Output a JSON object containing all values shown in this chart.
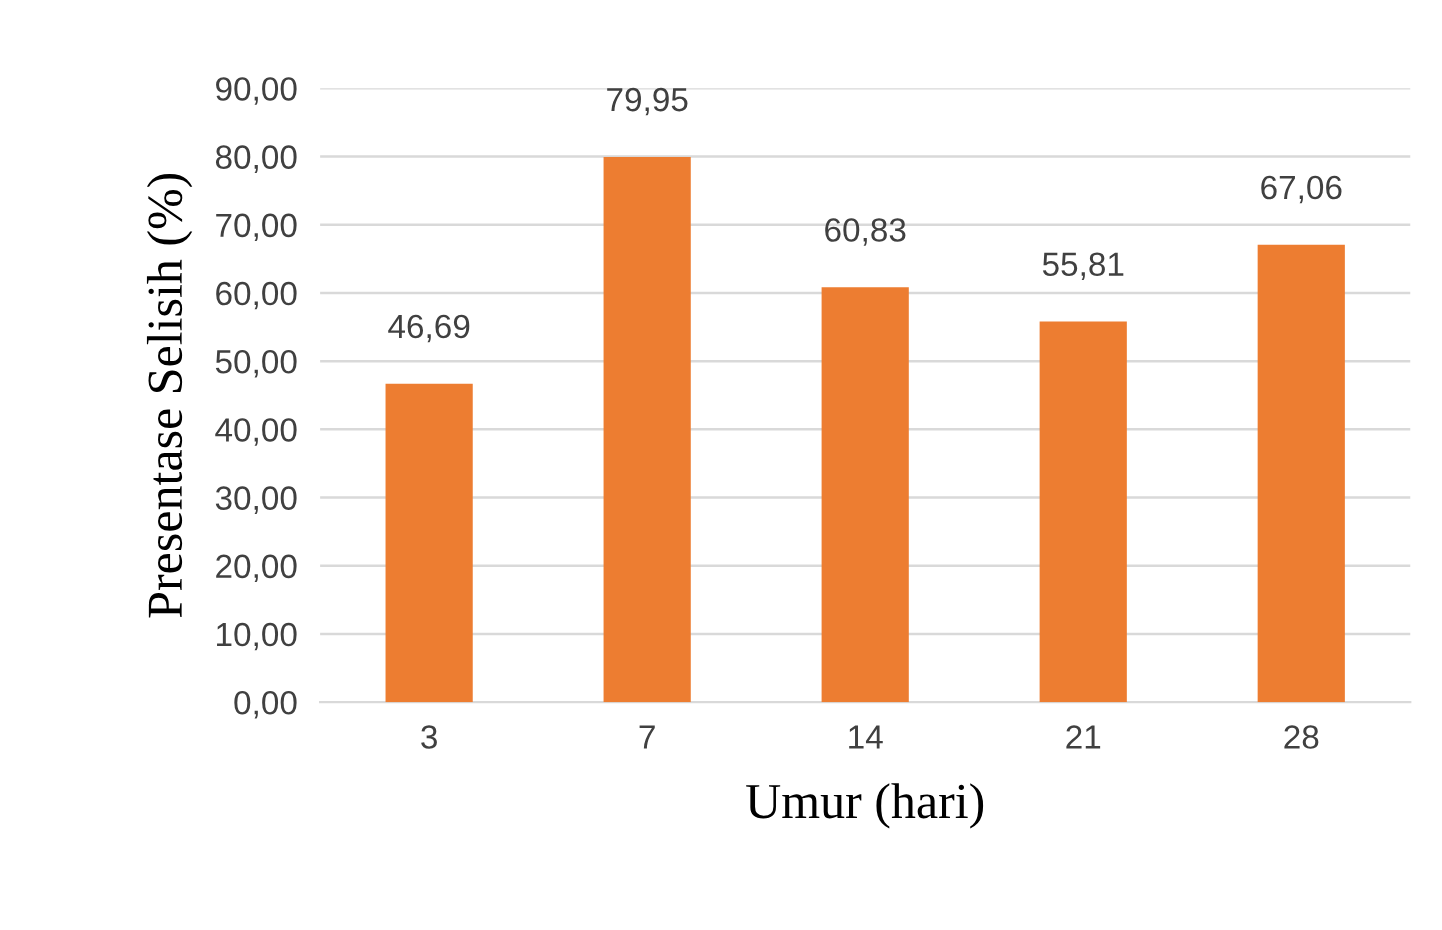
{
  "chart_data": {
    "type": "bar",
    "xlabel": "Umur (hari)",
    "ylabel": "Presentase Selisih (%)",
    "categories": [
      "3",
      "7",
      "14",
      "21",
      "28"
    ],
    "values": [
      46.69,
      79.95,
      60.83,
      55.81,
      67.06
    ],
    "value_labels": [
      "46,69",
      "79,95",
      "60,83",
      "55,81",
      "67,06"
    ],
    "color": "#ed7d31",
    "ylim": [
      0,
      90
    ],
    "yticks": [
      {
        "value": 0,
        "label": "0,00"
      },
      {
        "value": 10,
        "label": "10,00"
      },
      {
        "value": 20,
        "label": "20,00"
      },
      {
        "value": 30,
        "label": "30,00"
      },
      {
        "value": 40,
        "label": "40,00"
      },
      {
        "value": 50,
        "label": "50,00"
      },
      {
        "value": 60,
        "label": "60,00"
      },
      {
        "value": 70,
        "label": "70,00"
      },
      {
        "value": 80,
        "label": "80,00"
      },
      {
        "value": 90,
        "label": "90,00"
      }
    ],
    "grid": "y",
    "legend": false
  }
}
